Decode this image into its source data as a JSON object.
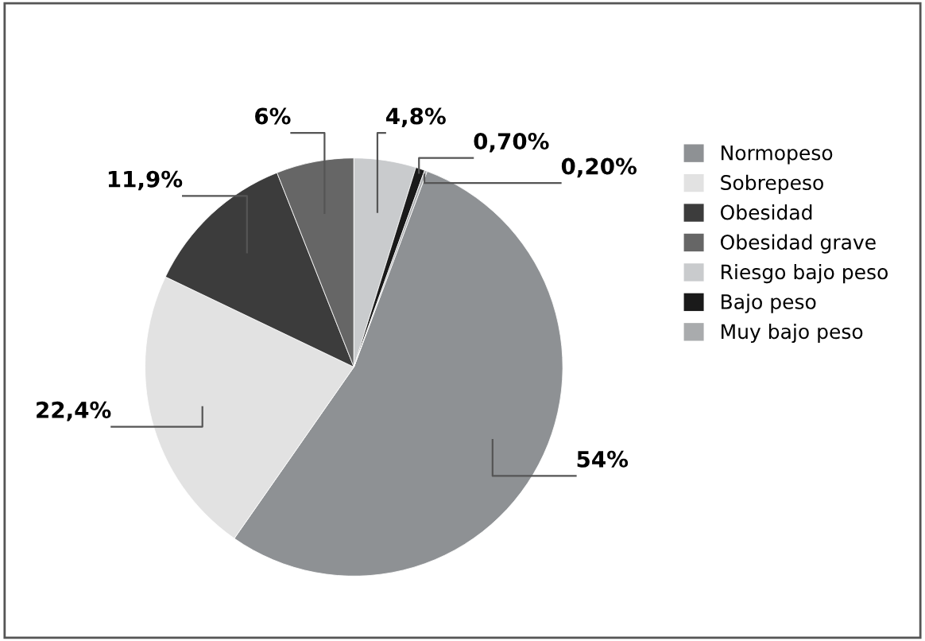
{
  "chart_data": {
    "type": "pie",
    "categories": [
      "Normopeso",
      "Sobrepeso",
      "Obesidad",
      "Obesidad grave",
      "Riesgo bajo peso",
      "Bajo peso",
      "Muy bajo peso"
    ],
    "values": [
      54,
      22.4,
      11.9,
      6,
      4.8,
      0.7,
      0.2
    ],
    "value_labels": [
      "54%",
      "22,4%",
      "11,9%",
      "6%",
      "4,8%",
      "0,70%",
      "0,20%"
    ],
    "colors": [
      "#8e9194",
      "#e2e2e2",
      "#3c3c3c",
      "#666666",
      "#c9cbcd",
      "#1a1a1a",
      "#a9abad"
    ],
    "legend": "right"
  }
}
